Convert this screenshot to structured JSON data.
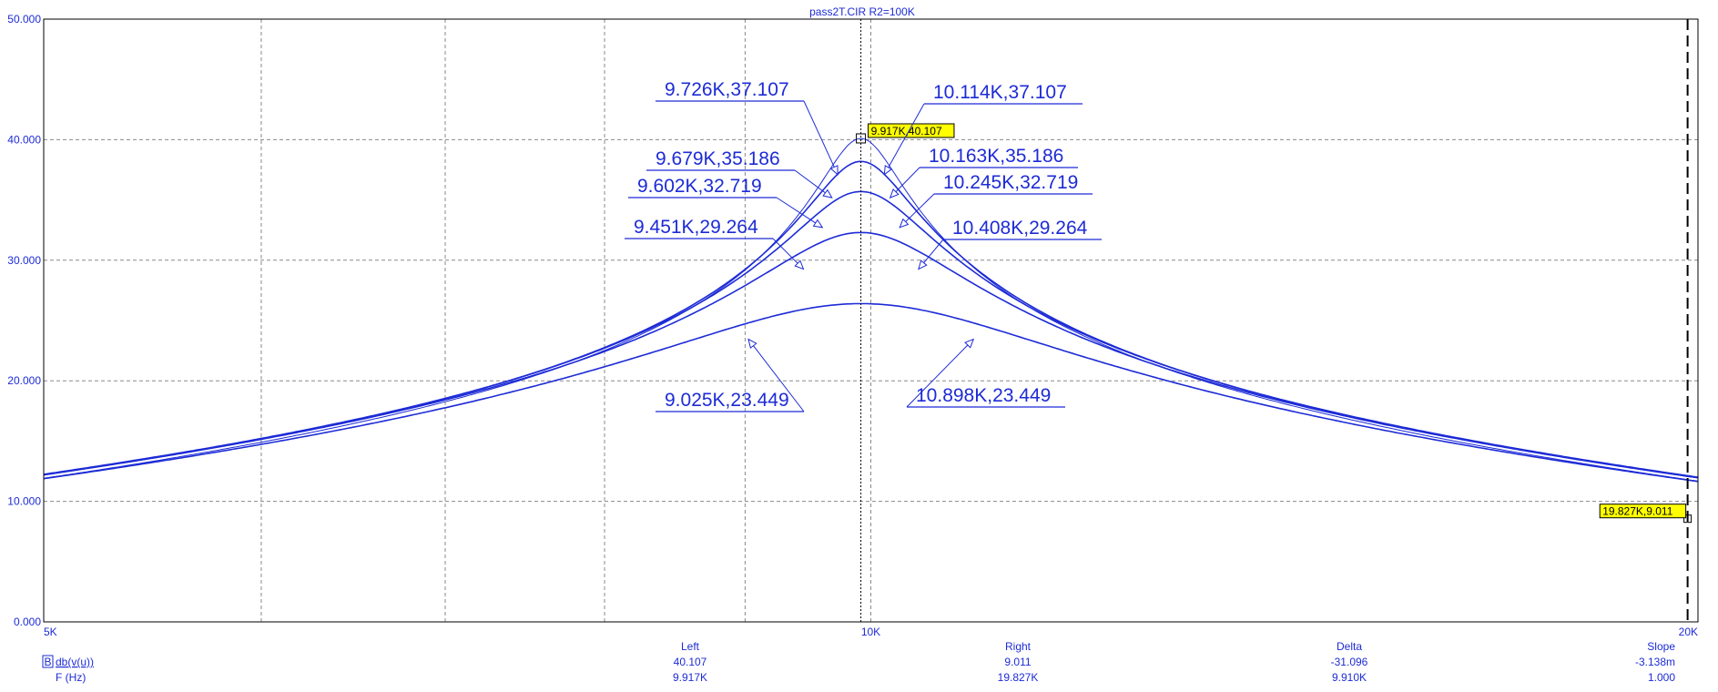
{
  "window": {
    "title": "pass2T.CIR R2=100K"
  },
  "colors": {
    "trace": "#1d2bd6",
    "grid": "#8a8a8a",
    "cursor_box": "#ffff00"
  },
  "chart_data": {
    "type": "line",
    "title": "pass2T.CIR R2=100K",
    "x_scale": "log",
    "xlim": [
      5000,
      20000
    ],
    "ylim": [
      0,
      50
    ],
    "x_ticks": [
      {
        "value": 5000,
        "label": "5K"
      },
      {
        "value": 10000,
        "label": "10K"
      },
      {
        "value": 20000,
        "label": "20K"
      }
    ],
    "y_ticks": [
      {
        "value": 0,
        "label": "0.000"
      },
      {
        "value": 10,
        "label": "10.000"
      },
      {
        "value": 20,
        "label": "20.000"
      },
      {
        "value": 30,
        "label": "30.000"
      },
      {
        "value": 40,
        "label": "40.000"
      },
      {
        "value": 50,
        "label": "50.000"
      }
    ],
    "grid": true,
    "series": [
      {
        "peak_f": 9917,
        "peak_db": 40.107,
        "half_bw_oct": 0.0588
      },
      {
        "peak_f": 9917,
        "peak_db": 38.2,
        "half_bw_oct": 0.0757
      },
      {
        "peak_f": 9917,
        "peak_db": 35.7,
        "half_bw_oct": 0.1015
      },
      {
        "peak_f": 9917,
        "peak_db": 32.3,
        "half_bw_oct": 0.1495
      },
      {
        "peak_f": 9917,
        "peak_db": 26.4,
        "half_bw_oct": 0.2869
      }
    ],
    "annotations": [
      {
        "label": "9.726K,37.107",
        "x": 9726,
        "y": 37.107,
        "side": "left"
      },
      {
        "label": "10.114K,37.107",
        "x": 10114,
        "y": 37.107,
        "side": "right"
      },
      {
        "label": "9.679K,35.186",
        "x": 9679,
        "y": 35.186,
        "side": "left"
      },
      {
        "label": "10.163K,35.186",
        "x": 10163,
        "y": 35.186,
        "side": "right"
      },
      {
        "label": "9.602K,32.719",
        "x": 9602,
        "y": 32.719,
        "side": "left"
      },
      {
        "label": "10.245K,32.719",
        "x": 10245,
        "y": 32.719,
        "side": "right"
      },
      {
        "label": "9.451K,29.264",
        "x": 9451,
        "y": 29.264,
        "side": "left"
      },
      {
        "label": "10.408K,29.264",
        "x": 10408,
        "y": 29.264,
        "side": "right"
      },
      {
        "label": "9.025K,23.449",
        "x": 9025,
        "y": 23.449,
        "side": "left"
      },
      {
        "label": "10.898K,23.449",
        "x": 10898,
        "y": 23.449,
        "side": "right"
      }
    ],
    "cursors": [
      {
        "label": "9.917K,40.107",
        "x": 9917,
        "y": 40.107
      },
      {
        "label": "19.827K,9.011",
        "x": 19827,
        "y": 9.011
      }
    ]
  },
  "readout": {
    "headers": [
      "Left",
      "Right",
      "Delta",
      "Slope"
    ],
    "rows": [
      {
        "badge": "B",
        "name": "db(v(u))",
        "values": [
          "40.107",
          "9.011",
          "-31.096",
          "-3.138m"
        ]
      },
      {
        "badge": "",
        "name": "F (Hz)",
        "values": [
          "9.917K",
          "19.827K",
          "9.910K",
          "1.000"
        ]
      }
    ]
  }
}
